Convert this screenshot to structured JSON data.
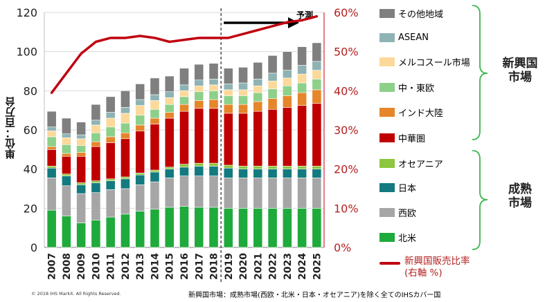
{
  "y_axis_label": "単位：百万台",
  "forecast_label": "予測",
  "copyright": "© 2018 IHS Markit. All Rights Reserved.",
  "footnote": "新興国市場：成熟市場(西欧・北米・日本・オセアニア)を除く全てのIHSカバー国",
  "groups": {
    "emerging": "新興国\n市場",
    "mature": "成熟\n市場"
  },
  "legend": [
    {
      "label": "その他地域",
      "color": "#7f7f7f"
    },
    {
      "label": "ASEAN",
      "color": "#8fb3b4"
    },
    {
      "label": "メルコスール市場",
      "color": "#fcd99a"
    },
    {
      "label": "中・東欧",
      "color": "#8dd08a"
    },
    {
      "label": "インド大陸",
      "color": "#e5862a"
    },
    {
      "label": "中華圏",
      "color": "#c00000"
    },
    {
      "label": "オセアニア",
      "color": "#8dc63f"
    },
    {
      "label": "日本",
      "color": "#137a80"
    },
    {
      "label": "西欧",
      "color": "#a6a6a6"
    },
    {
      "label": "北米",
      "color": "#1faa3c"
    }
  ],
  "ratio_legend": {
    "line1": "新興国販売比率",
    "line2": "(右軸 %)",
    "color": "#c0000f"
  },
  "chart_data": {
    "type": "bar",
    "stacked": true,
    "categories": [
      "2007",
      "2008",
      "2009",
      "2010",
      "2011",
      "2012",
      "2013",
      "2014",
      "2015",
      "2016",
      "2017",
      "2018",
      "2019",
      "2020",
      "2021",
      "2022",
      "2023",
      "2024",
      "2025"
    ],
    "forecast_from": "2019",
    "ylabel": "単位：百万台",
    "ylim": [
      0,
      120
    ],
    "yticks": [
      0,
      20,
      40,
      60,
      80,
      100,
      120
    ],
    "y2lim": [
      0,
      0.6
    ],
    "y2ticks": [
      "0%",
      "10%",
      "20%",
      "30%",
      "40%",
      "50%",
      "60%"
    ],
    "series": [
      {
        "name": "北米",
        "color": "#1faa3c",
        "values": [
          19,
          16,
          12.5,
          14,
          15.5,
          17,
          18.5,
          19.5,
          20.5,
          21,
          20.5,
          20.5,
          20,
          20,
          20,
          20,
          20,
          20,
          20
        ]
      },
      {
        "name": "西欧",
        "color": "#a6a6a6",
        "values": [
          16.5,
          15.5,
          15,
          14,
          14,
          13,
          13.5,
          14,
          15,
          15.5,
          16,
          16,
          15.5,
          15.5,
          15.5,
          15.5,
          15.5,
          15.5,
          15.5
        ]
      },
      {
        "name": "日本",
        "color": "#137a80",
        "values": [
          5,
          5,
          4.5,
          5,
          4.5,
          5,
          5,
          5,
          4.5,
          4.5,
          5,
          5,
          5,
          4.5,
          4.5,
          4.5,
          4.5,
          4.5,
          4.5
        ]
      },
      {
        "name": "オセアニア",
        "color": "#8dc63f",
        "values": [
          1,
          1,
          1,
          1,
          1,
          1,
          1,
          1,
          1,
          1.5,
          1.5,
          1.5,
          1.5,
          1.5,
          1.5,
          1.5,
          1.5,
          1.5,
          1.5
        ]
      },
      {
        "name": "中華圏",
        "color": "#c00000",
        "values": [
          8.5,
          9,
          13.5,
          17.5,
          18.5,
          19.5,
          21.5,
          23.5,
          25,
          27,
          28,
          28,
          26.5,
          27,
          28,
          29,
          30,
          31,
          32
        ]
      },
      {
        "name": "インド大陸",
        "color": "#e5862a",
        "values": [
          1.5,
          1.5,
          2,
          2.5,
          3,
          3,
          3,
          3,
          3,
          3.5,
          4,
          4.5,
          4.5,
          4.5,
          5,
          5.5,
          6,
          6.5,
          7
        ]
      },
      {
        "name": "中・東欧",
        "color": "#8dd08a",
        "values": [
          5,
          4.5,
          3.5,
          4.5,
          5,
          5,
          5,
          4.5,
          4,
          4,
          4.5,
          4.5,
          4.5,
          4.5,
          4.5,
          5,
          5,
          5,
          5.5
        ]
      },
      {
        "name": "メルコスール市場",
        "color": "#fcd99a",
        "values": [
          3,
          3.5,
          3.5,
          4,
          4.5,
          5,
          5,
          4.5,
          3.5,
          3,
          3,
          3,
          3,
          3,
          3.5,
          4,
          4,
          4.5,
          4.5
        ]
      },
      {
        "name": "ASEAN",
        "color": "#8fb3b4",
        "values": [
          2,
          2,
          2,
          2.5,
          3,
          3,
          3,
          3,
          3,
          3,
          3,
          3,
          3,
          3.5,
          3.5,
          4,
          4,
          4.5,
          4.5
        ]
      },
      {
        "name": "その他地域",
        "color": "#7f7f7f",
        "values": [
          8,
          8,
          6.5,
          8,
          8,
          8.5,
          8,
          8.5,
          8,
          8.5,
          8,
          8,
          8,
          8,
          8.5,
          9,
          9.5,
          9.5,
          9.5
        ]
      }
    ],
    "line": {
      "name": "新興国販売比率",
      "axis": "right",
      "color": "#c0000f",
      "values": [
        0.395,
        0.445,
        0.495,
        0.525,
        0.535,
        0.535,
        0.54,
        0.535,
        0.525,
        0.53,
        0.535,
        0.535,
        0.535,
        0.545,
        0.555,
        0.565,
        0.575,
        0.58,
        0.59
      ]
    }
  }
}
